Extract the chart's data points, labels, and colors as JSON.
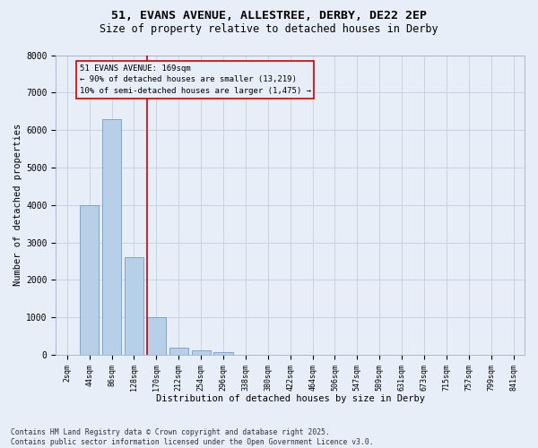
{
  "title_line1": "51, EVANS AVENUE, ALLESTREE, DERBY, DE22 2EP",
  "title_line2": "Size of property relative to detached houses in Derby",
  "xlabel": "Distribution of detached houses by size in Derby",
  "ylabel": "Number of detached properties",
  "categories": [
    "2sqm",
    "44sqm",
    "86sqm",
    "128sqm",
    "170sqm",
    "212sqm",
    "254sqm",
    "296sqm",
    "338sqm",
    "380sqm",
    "422sqm",
    "464sqm",
    "506sqm",
    "547sqm",
    "589sqm",
    "631sqm",
    "673sqm",
    "715sqm",
    "757sqm",
    "799sqm",
    "841sqm"
  ],
  "bar_values": [
    0,
    4000,
    6300,
    2600,
    1000,
    200,
    130,
    80,
    0,
    0,
    0,
    0,
    0,
    0,
    0,
    0,
    0,
    0,
    0,
    0,
    0
  ],
  "bar_color": "#b8cfe8",
  "bar_edge_color": "#6090c0",
  "grid_color": "#c8d4e4",
  "background_color": "#e8eef8",
  "red_line_color": "#cc0000",
  "annotation_text": "51 EVANS AVENUE: 169sqm\n← 90% of detached houses are smaller (13,219)\n10% of semi-detached houses are larger (1,475) →",
  "annotation_box_edgecolor": "#cc0000",
  "ylim_max": 8000,
  "yticks": [
    0,
    1000,
    2000,
    3000,
    4000,
    5000,
    6000,
    7000,
    8000
  ],
  "footer_line1": "Contains HM Land Registry data © Crown copyright and database right 2025.",
  "footer_line2": "Contains public sector information licensed under the Open Government Licence v3.0."
}
